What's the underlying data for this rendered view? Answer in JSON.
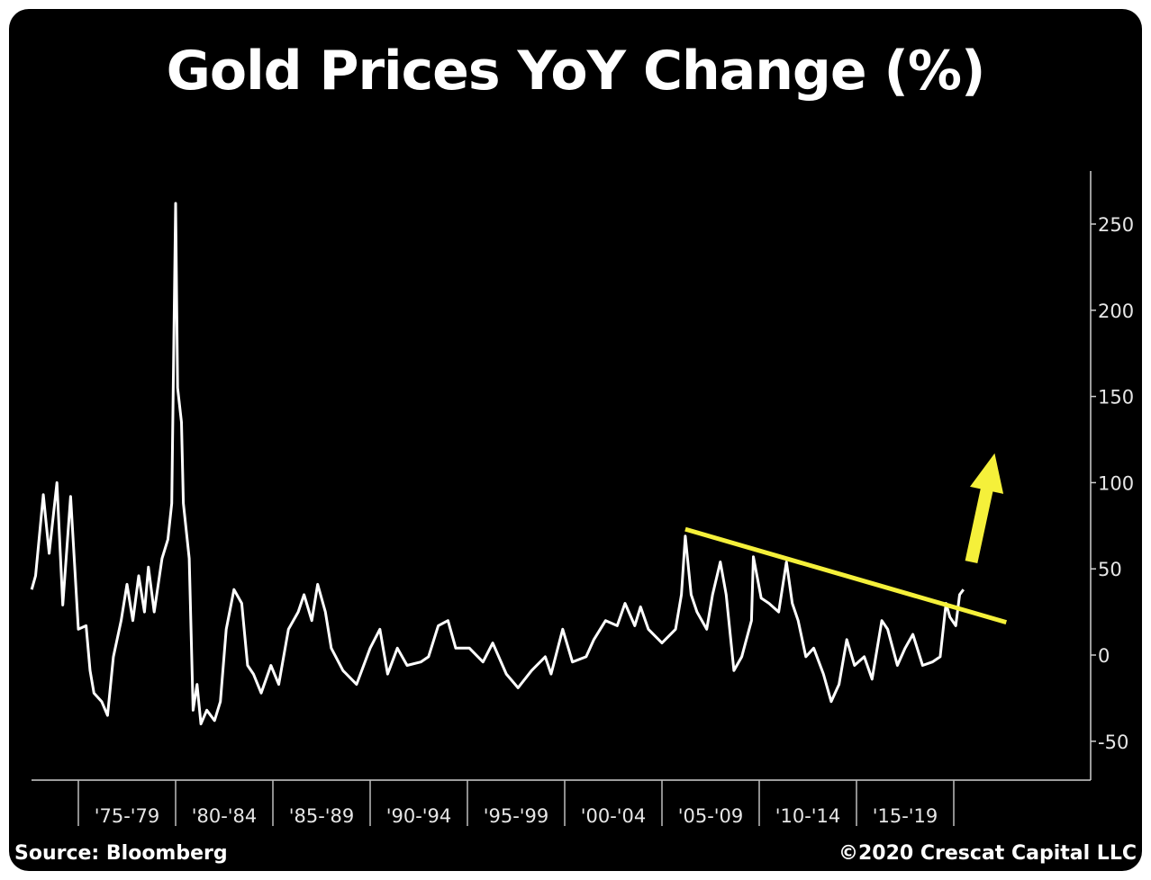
{
  "chart_data": {
    "type": "line",
    "title": "Gold Prices YoY Change (%)",
    "xlabel": "",
    "ylabel": "",
    "xlim": [
      1972.6,
      2023.1
    ],
    "ylim": [
      -62,
      280
    ],
    "y_ticks": [
      -50,
      0,
      50,
      100,
      150,
      200,
      250
    ],
    "y_tick_labels": [
      "-50",
      "0",
      "50",
      "100",
      "150",
      "200",
      "250"
    ],
    "y_axis_side": "right",
    "x_category_labels": [
      "'75-'79",
      "'80-'84",
      "'85-'89",
      "'90-'94",
      "'95-'99",
      "'00-'04",
      "'05-'09",
      "'10-'14",
      "'15-'19"
    ],
    "x_category_starts": [
      1975,
      1980,
      1985,
      1990,
      1995,
      2000,
      2005,
      2010,
      2015,
      2020
    ],
    "grid": false,
    "series": [
      {
        "name": "Gold YoY Change (%)",
        "color": "#ffffff",
        "points": [
          [
            1972.6,
            38
          ],
          [
            1972.8,
            46
          ],
          [
            1973.2,
            93
          ],
          [
            1973.5,
            59
          ],
          [
            1973.9,
            100
          ],
          [
            1974.2,
            29
          ],
          [
            1974.6,
            92
          ],
          [
            1975.0,
            15
          ],
          [
            1975.4,
            17
          ],
          [
            1975.6,
            -9
          ],
          [
            1975.8,
            -22
          ],
          [
            1976.2,
            -27
          ],
          [
            1976.5,
            -35
          ],
          [
            1976.8,
            -1
          ],
          [
            1977.2,
            20
          ],
          [
            1977.5,
            41
          ],
          [
            1977.8,
            20
          ],
          [
            1978.1,
            46
          ],
          [
            1978.4,
            25
          ],
          [
            1978.6,
            51
          ],
          [
            1978.9,
            25
          ],
          [
            1979.3,
            56
          ],
          [
            1979.6,
            67
          ],
          [
            1979.8,
            88
          ],
          [
            1980.0,
            262
          ],
          [
            1980.1,
            155
          ],
          [
            1980.3,
            135
          ],
          [
            1980.4,
            88
          ],
          [
            1980.7,
            56
          ],
          [
            1980.9,
            -32
          ],
          [
            1981.1,
            -17
          ],
          [
            1981.3,
            -40
          ],
          [
            1981.6,
            -32
          ],
          [
            1982.0,
            -38
          ],
          [
            1982.3,
            -27
          ],
          [
            1982.6,
            15
          ],
          [
            1983.0,
            38
          ],
          [
            1983.4,
            30
          ],
          [
            1983.7,
            -6
          ],
          [
            1984.0,
            -11
          ],
          [
            1984.4,
            -22
          ],
          [
            1984.9,
            -6
          ],
          [
            1985.3,
            -17
          ],
          [
            1985.8,
            15
          ],
          [
            1986.3,
            25
          ],
          [
            1986.6,
            35
          ],
          [
            1987.0,
            20
          ],
          [
            1987.3,
            41
          ],
          [
            1987.7,
            25
          ],
          [
            1988.0,
            4
          ],
          [
            1988.6,
            -9
          ],
          [
            1989.3,
            -17
          ],
          [
            1990.0,
            4
          ],
          [
            1990.5,
            15
          ],
          [
            1990.9,
            -11
          ],
          [
            1991.4,
            4
          ],
          [
            1991.9,
            -6
          ],
          [
            1992.6,
            -4
          ],
          [
            1993.0,
            -1
          ],
          [
            1993.5,
            17
          ],
          [
            1994.0,
            20
          ],
          [
            1994.4,
            4
          ],
          [
            1995.1,
            4
          ],
          [
            1995.8,
            -4
          ],
          [
            1996.3,
            7
          ],
          [
            1997.0,
            -11
          ],
          [
            1997.6,
            -19
          ],
          [
            1998.3,
            -9
          ],
          [
            1999.0,
            -1
          ],
          [
            1999.3,
            -11
          ],
          [
            1999.9,
            15
          ],
          [
            2000.4,
            -4
          ],
          [
            2001.1,
            -1
          ],
          [
            2001.5,
            9
          ],
          [
            2002.1,
            20
          ],
          [
            2002.7,
            17
          ],
          [
            2003.1,
            30
          ],
          [
            2003.6,
            17
          ],
          [
            2003.9,
            28
          ],
          [
            2004.3,
            15
          ],
          [
            2005.0,
            7
          ],
          [
            2005.7,
            15
          ],
          [
            2006.0,
            35
          ],
          [
            2006.2,
            69
          ],
          [
            2006.5,
            35
          ],
          [
            2006.8,
            25
          ],
          [
            2007.3,
            15
          ],
          [
            2007.6,
            35
          ],
          [
            2008.0,
            54
          ],
          [
            2008.3,
            35
          ],
          [
            2008.7,
            -9
          ],
          [
            2009.1,
            -1
          ],
          [
            2009.6,
            20
          ],
          [
            2009.7,
            57
          ],
          [
            2010.1,
            33
          ],
          [
            2010.5,
            30
          ],
          [
            2011.0,
            25
          ],
          [
            2011.4,
            54
          ],
          [
            2011.7,
            30
          ],
          [
            2012.0,
            20
          ],
          [
            2012.4,
            -1
          ],
          [
            2012.8,
            4
          ],
          [
            2013.3,
            -11
          ],
          [
            2013.7,
            -27
          ],
          [
            2014.1,
            -17
          ],
          [
            2014.5,
            9
          ],
          [
            2014.9,
            -6
          ],
          [
            2015.4,
            -1
          ],
          [
            2015.8,
            -14
          ],
          [
            2016.3,
            20
          ],
          [
            2016.6,
            15
          ],
          [
            2017.1,
            -6
          ],
          [
            2017.5,
            4
          ],
          [
            2017.9,
            12
          ],
          [
            2018.4,
            -6
          ],
          [
            2018.9,
            -4
          ],
          [
            2019.3,
            -1
          ],
          [
            2019.6,
            30
          ],
          [
            2019.8,
            22
          ],
          [
            2020.1,
            17
          ],
          [
            2020.3,
            35
          ],
          [
            2020.5,
            38
          ]
        ]
      }
    ],
    "annotations": {
      "trendline": {
        "color": "#f5f03a",
        "from": [
          2006.2,
          73
        ],
        "to": [
          2022.7,
          19
        ]
      },
      "arrow": {
        "color": "#f5f03a",
        "from": [
          2020.9,
          54
        ],
        "to": [
          2022.1,
          117
        ]
      }
    },
    "source": "Source: Bloomberg",
    "copyright": "©2020 Crescat Capital LLC"
  }
}
